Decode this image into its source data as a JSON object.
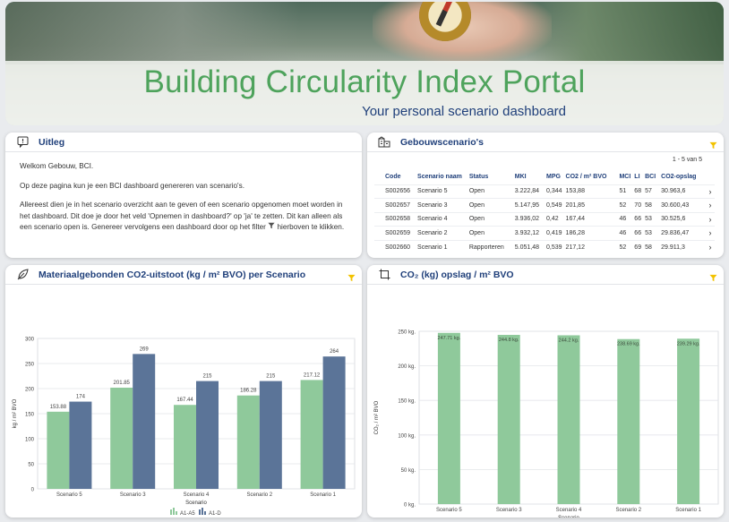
{
  "hero": {
    "title": "Building Circularity Index Portal",
    "subtitle": "Your personal scenario dashboard"
  },
  "uitleg": {
    "title": "Uitleg",
    "icon": "info-comment-icon",
    "p1": "Welkom Gebouw, BCI.",
    "p2": "Op deze pagina kun je een BCI dashboard genereren van scenario's.",
    "p3_a": "Allereest dien je in het scenario overzicht aan te geven of een scenario opgenomen moet worden in het dashboard. Dit doe je door het veld 'Opnemen in dashboard?' op 'ja' te zetten. Dit kan alleen als een scenario open is. Genereer vervolgens een dashboard door op het filter",
    "p3_b": "hierboven te klikken."
  },
  "scenarios": {
    "title": "Gebouwscenario's",
    "icon": "buildings-icon",
    "pager": "1 - 5 van 5",
    "columns": [
      "Code",
      "Scenario naam",
      "Status",
      "MKI",
      "MPG",
      "CO2 / m² BVO",
      "MCI",
      "LI",
      "BCI",
      "CO2-opslag"
    ],
    "rows": [
      [
        "S002656",
        "Scenario 5",
        "Open",
        "3.222,84",
        "0,344",
        "153,88",
        "51",
        "68",
        "57",
        "30.963,6"
      ],
      [
        "S002657",
        "Scenario 3",
        "Open",
        "5.147,95",
        "0,549",
        "201,85",
        "52",
        "70",
        "58",
        "30.600,43"
      ],
      [
        "S002658",
        "Scenario 4",
        "Open",
        "3.936,02",
        "0,42",
        "167,44",
        "46",
        "66",
        "53",
        "30.525,6"
      ],
      [
        "S002659",
        "Scenario 2",
        "Open",
        "3.932,12",
        "0,419",
        "186,28",
        "46",
        "66",
        "53",
        "29.836,47"
      ],
      [
        "S002660",
        "Scenario 1",
        "Rapporteren",
        "5.051,48",
        "0,539",
        "217,12",
        "52",
        "69",
        "58",
        "29.911,3"
      ]
    ]
  },
  "chart1": {
    "title": "Materiaalgebonden CO2-uitstoot (kg / m² BVO) per Scenario",
    "icon": "leaf-icon"
  },
  "chart2": {
    "title": "CO₂ (kg) opslag / m² BVO",
    "icon": "crop-frame-icon"
  },
  "colors": {
    "green_bar": "#8fc99b",
    "blue_bar": "#5b7498",
    "title_green": "#4ea35c",
    "navy": "#1f3f7a",
    "filter_yellow": "#f2c200"
  },
  "chart_data": [
    {
      "type": "bar",
      "title": "",
      "categories": [
        "Scenario 5",
        "Scenario 3",
        "Scenario 4",
        "Scenario 2",
        "Scenario 1"
      ],
      "series": [
        {
          "name": "A1-A5",
          "values": [
            153.88,
            201.85,
            167.44,
            186.28,
            217.12
          ],
          "labels": [
            "153.88",
            "201.85",
            "167.44",
            "186.28",
            "217.12"
          ]
        },
        {
          "name": "A1-D",
          "values": [
            174,
            269,
            215,
            215,
            264
          ],
          "labels": [
            "174",
            "269",
            "215",
            "215",
            "264"
          ]
        }
      ],
      "xlabel": "Scenario",
      "ylabel": "kg / m² BVO",
      "ylim": [
        0,
        300
      ],
      "yticks": [
        0,
        50,
        100,
        150,
        200,
        250,
        300
      ],
      "grid": true,
      "legend": "bottom"
    },
    {
      "type": "bar",
      "title": "",
      "categories": [
        "Scenario 5",
        "Scenario 3",
        "Scenario 4",
        "Scenario 2",
        "Scenario 1"
      ],
      "series": [
        {
          "values": [
            247.71,
            244.8,
            244.2,
            238.69,
            239.29
          ],
          "labels": [
            "247.71 kg.",
            "244.8 kg.",
            "244.2 kg.",
            "238.69 kg.",
            "239.29 kg."
          ]
        }
      ],
      "xlabel": "Scenario",
      "ylabel": "CO₂ / m² BVO",
      "ylim": [
        0,
        250
      ],
      "yticks": [
        0,
        50,
        100,
        150,
        200,
        250
      ],
      "ytick_labels": [
        "0 kg.",
        "50 kg.",
        "100 kg.",
        "150 kg.",
        "200 kg.",
        "250 kg."
      ],
      "grid": true,
      "legend": "none"
    }
  ]
}
